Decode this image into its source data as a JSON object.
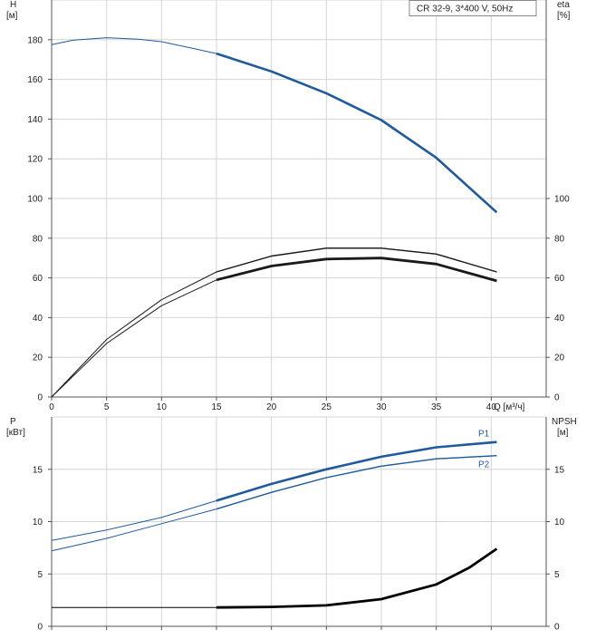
{
  "chart_data": [
    {
      "type": "line",
      "title": "",
      "legend_label": "CR 32-9, 3*400 V, 50Hz",
      "xlabel": "Q [м³/ч]",
      "xlim": [
        0,
        45
      ],
      "x_ticks": [
        0,
        5,
        10,
        15,
        20,
        25,
        30,
        35,
        40
      ],
      "grid": true,
      "left_axis": {
        "label_line1": "H",
        "label_line2": "[м]",
        "ylim": [
          0,
          200
        ],
        "ticks": [
          0,
          20,
          40,
          60,
          80,
          100,
          120,
          140,
          160,
          180
        ]
      },
      "right_axis": {
        "label_line1": "eta",
        "label_line2": "[%]",
        "ylim": [
          0,
          200
        ],
        "ticks": [
          0,
          20,
          40,
          60,
          80,
          100
        ]
      },
      "series": [
        {
          "axis": "left",
          "color": "#1f5a9c",
          "width_thin": 1,
          "width_thick": 2.6,
          "thick_from_x": 15,
          "points": [
            [
              0,
              177.5
            ],
            [
              2,
              179.8
            ],
            [
              5,
              181
            ],
            [
              8,
              180.2
            ],
            [
              10,
              179
            ],
            [
              13,
              175.5
            ],
            [
              15,
              173
            ],
            [
              20,
              164
            ],
            [
              25,
              153
            ],
            [
              30,
              139.5
            ],
            [
              35,
              120.5
            ],
            [
              40.5,
              93
            ]
          ]
        },
        {
          "axis": "right",
          "color": "#1a1a1a",
          "width_thin": 1,
          "width_thick": 1.4,
          "thick_from_x": 15,
          "points": [
            [
              0,
              0
            ],
            [
              5,
              29
            ],
            [
              10,
              49
            ],
            [
              15,
              63
            ],
            [
              20,
              71
            ],
            [
              25,
              75
            ],
            [
              30,
              75
            ],
            [
              35,
              72
            ],
            [
              40.5,
              63
            ]
          ]
        },
        {
          "axis": "right",
          "color": "#1a1a1a",
          "width_thin": 1,
          "width_thick": 2.8,
          "thick_from_x": 15,
          "points": [
            [
              0,
              0
            ],
            [
              5,
              27
            ],
            [
              10,
              46
            ],
            [
              15,
              59
            ],
            [
              20,
              66
            ],
            [
              25,
              69.5
            ],
            [
              30,
              70
            ],
            [
              35,
              67
            ],
            [
              40.5,
              58.5
            ]
          ]
        }
      ]
    },
    {
      "type": "line",
      "title": "",
      "xlim": [
        0,
        45
      ],
      "x_ticks": [
        0,
        5,
        10,
        15,
        20,
        25,
        30,
        35,
        40
      ],
      "grid": true,
      "left_axis": {
        "label_line1": "P",
        "label_line2": "[кВт]",
        "ylim": [
          0,
          20
        ],
        "ticks": [
          0,
          5,
          10,
          15
        ]
      },
      "right_axis": {
        "label_line1": "NPSH",
        "label_line2": "[м]",
        "ylim": [
          0,
          20
        ],
        "ticks": [
          0,
          5,
          10,
          15
        ]
      },
      "series": [
        {
          "name": "P1",
          "axis": "left",
          "color": "#1f5a9c",
          "width_thin": 1,
          "width_thick": 2.6,
          "thick_from_x": 15,
          "points": [
            [
              0,
              8.2
            ],
            [
              5,
              9.2
            ],
            [
              10,
              10.4
            ],
            [
              15,
              12
            ],
            [
              20,
              13.6
            ],
            [
              25,
              15
            ],
            [
              30,
              16.2
            ],
            [
              35,
              17.1
            ],
            [
              40.5,
              17.6
            ]
          ]
        },
        {
          "name": "P2",
          "axis": "left",
          "color": "#1f5a9c",
          "width_thin": 1,
          "width_thick": 1.4,
          "thick_from_x": 15,
          "points": [
            [
              0,
              7.2
            ],
            [
              5,
              8.4
            ],
            [
              10,
              9.8
            ],
            [
              15,
              11.2
            ],
            [
              20,
              12.8
            ],
            [
              25,
              14.2
            ],
            [
              30,
              15.3
            ],
            [
              35,
              16
            ],
            [
              40.5,
              16.3
            ]
          ]
        },
        {
          "axis": "right",
          "color": "#000000",
          "width_thin": 1,
          "width_thick": 2.8,
          "thick_from_x": 15,
          "points": [
            [
              0,
              1.8
            ],
            [
              10,
              1.8
            ],
            [
              15,
              1.8
            ],
            [
              20,
              1.85
            ],
            [
              25,
              2
            ],
            [
              30,
              2.6
            ],
            [
              35,
              4
            ],
            [
              38,
              5.6
            ],
            [
              40.5,
              7.4
            ]
          ]
        }
      ]
    }
  ]
}
